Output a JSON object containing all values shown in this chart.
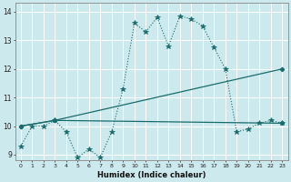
{
  "xlabel": "Humidex (Indice chaleur)",
  "background_color": "#cce9ed",
  "grid_color": "#ffffff",
  "line_color": "#1a6b6b",
  "xlim": [
    -0.5,
    23.5
  ],
  "ylim": [
    8.8,
    14.3
  ],
  "ytick_values": [
    9,
    10,
    11,
    12,
    13,
    14
  ],
  "line1_x": [
    0,
    1,
    2,
    3,
    4,
    5,
    6,
    7,
    8,
    9,
    10,
    11,
    12,
    13,
    14,
    15,
    16,
    17,
    18,
    19,
    20,
    21,
    22,
    23
  ],
  "line1_y": [
    9.3,
    10.0,
    10.0,
    10.2,
    9.8,
    8.9,
    9.2,
    8.9,
    9.8,
    11.3,
    13.6,
    13.3,
    13.8,
    12.8,
    13.85,
    13.75,
    13.5,
    12.75,
    12.0,
    9.8,
    9.9,
    10.1,
    10.2,
    10.1
  ],
  "line2_x": [
    0,
    3,
    23
  ],
  "line2_y": [
    10.0,
    10.2,
    12.0
  ],
  "line3_x": [
    0,
    3,
    23
  ],
  "line3_y": [
    10.0,
    10.2,
    10.1
  ]
}
